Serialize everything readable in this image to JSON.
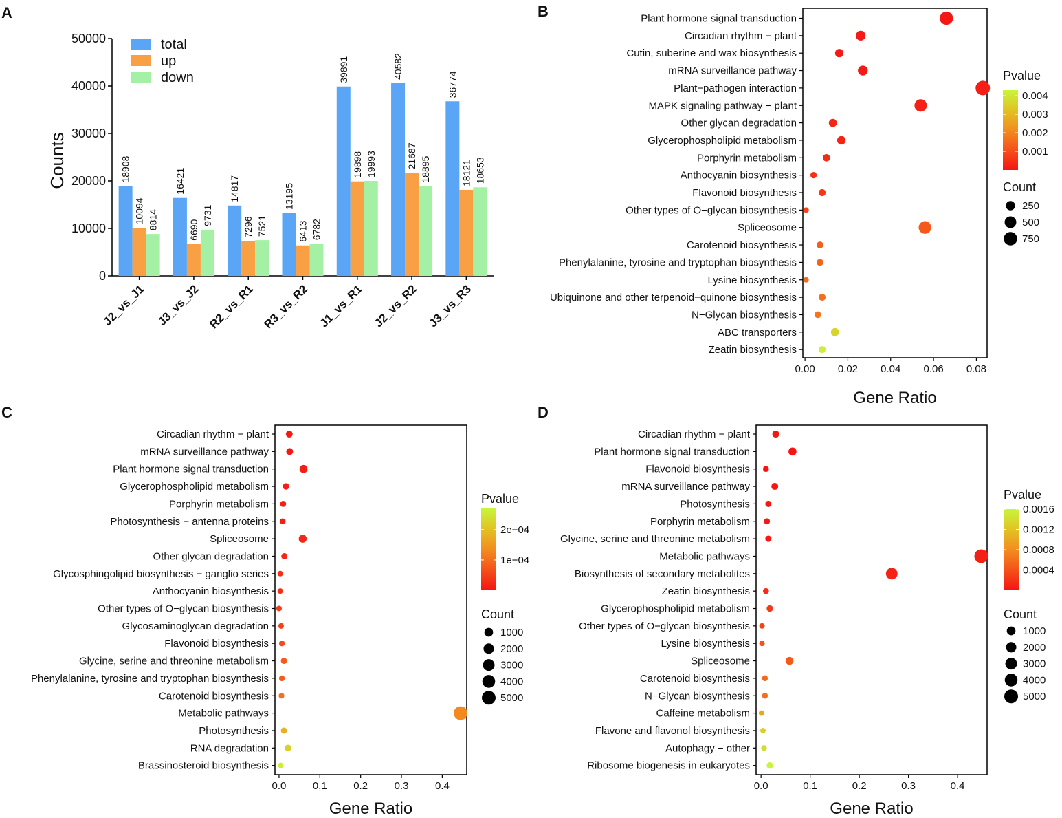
{
  "chart_data": [
    {
      "panel": "A",
      "type": "bar",
      "ylabel": "Counts",
      "xlabel": "",
      "ylim": [
        0,
        50000
      ],
      "yticks": [
        0,
        10000,
        20000,
        30000,
        40000,
        50000
      ],
      "categories": [
        "J2_vs_J1",
        "J3_vs_J2",
        "R2_vs_R1",
        "R3_vs_R2",
        "J1_vs_R1",
        "J2_vs_R2",
        "J3_vs_R3"
      ],
      "series": [
        {
          "name": "total",
          "color": "#5aa5f5",
          "values": [
            18908,
            16421,
            14817,
            13195,
            39891,
            40582,
            36774
          ]
        },
        {
          "name": "up",
          "color": "#f9a044",
          "values": [
            10094,
            6690,
            7296,
            6413,
            19898,
            21687,
            18121
          ]
        },
        {
          "name": "down",
          "color": "#a4f0a4",
          "values": [
            8814,
            9731,
            7521,
            6782,
            19993,
            18895,
            18653
          ]
        }
      ]
    },
    {
      "panel": "B",
      "type": "scatter",
      "xlabel": "Gene Ratio",
      "xlim": [
        -0.001,
        0.085
      ],
      "xticks": [
        0.0,
        0.02,
        0.04,
        0.06,
        0.08
      ],
      "xtick_labels": [
        "0.00",
        "0.02",
        "0.04",
        "0.06",
        "0.08"
      ],
      "color_title": "Pvalue",
      "color_range": [
        0.0,
        0.0043
      ],
      "color_ticks": [
        "0.001",
        "0.002",
        "0.003",
        "0.004"
      ],
      "color_tick_values": [
        0.001,
        0.002,
        0.003,
        0.004
      ],
      "size_title": "Count",
      "size_range": [
        30,
        900
      ],
      "size_legend": [
        "250",
        "500",
        "750"
      ],
      "size_legend_values": [
        250,
        500,
        750
      ],
      "terms": [
        {
          "label": "Plant hormone signal transduction",
          "x": 0.066,
          "count": 720,
          "p": 5e-05
        },
        {
          "label": "Circadian rhythm − plant",
          "x": 0.026,
          "count": 290,
          "p": 0.0001
        },
        {
          "label": "Cutin, suberine and wax biosynthesis",
          "x": 0.016,
          "count": 180,
          "p": 0.0001
        },
        {
          "label": "mRNA surveillance pathway",
          "x": 0.027,
          "count": 300,
          "p": 0.0001
        },
        {
          "label": "Plant−pathogen interaction",
          "x": 0.083,
          "count": 900,
          "p": 0.0002
        },
        {
          "label": "MAPK signaling pathway − plant",
          "x": 0.054,
          "count": 600,
          "p": 0.0002
        },
        {
          "label": "Other glycan degradation",
          "x": 0.013,
          "count": 150,
          "p": 0.0003
        },
        {
          "label": "Glycerophospholipid metabolism",
          "x": 0.017,
          "count": 190,
          "p": 0.0003
        },
        {
          "label": "Porphyrin metabolism",
          "x": 0.01,
          "count": 110,
          "p": 0.0004
        },
        {
          "label": "Anthocyanin biosynthesis",
          "x": 0.004,
          "count": 60,
          "p": 0.0005
        },
        {
          "label": "Flavonoid biosynthesis",
          "x": 0.008,
          "count": 95,
          "p": 0.0006
        },
        {
          "label": "Other types of O−glycan biosynthesis",
          "x": 0.0005,
          "count": 30,
          "p": 0.0008
        },
        {
          "label": "Spliceosome",
          "x": 0.056,
          "count": 620,
          "p": 0.0012
        },
        {
          "label": "Carotenoid biosynthesis",
          "x": 0.007,
          "count": 80,
          "p": 0.0013
        },
        {
          "label": "Phenylalanine, tyrosine and tryptophan biosynthesis",
          "x": 0.007,
          "count": 80,
          "p": 0.0014
        },
        {
          "label": "Lysine biosynthesis",
          "x": 0.0005,
          "count": 30,
          "p": 0.0015
        },
        {
          "label": "Ubiquinone and other terpenoid−quinone biosynthesis",
          "x": 0.008,
          "count": 90,
          "p": 0.0016
        },
        {
          "label": "N−Glycan biosynthesis",
          "x": 0.006,
          "count": 75,
          "p": 0.0017
        },
        {
          "label": "ABC transporters",
          "x": 0.014,
          "count": 160,
          "p": 0.0036
        },
        {
          "label": "Zeatin biosynthesis",
          "x": 0.008,
          "count": 90,
          "p": 0.0042
        }
      ]
    },
    {
      "panel": "C",
      "type": "scatter",
      "xlabel": "Gene Ratio",
      "xlim": [
        -0.01,
        0.46
      ],
      "xticks": [
        0.0,
        0.1,
        0.2,
        0.3,
        0.4
      ],
      "xtick_labels": [
        "0.0",
        "0.1",
        "0.2",
        "0.3",
        "0.4"
      ],
      "color_title": "Pvalue",
      "color_range": [
        0.0,
        0.00027
      ],
      "color_ticks": [
        "1e−04",
        "2e−04"
      ],
      "color_tick_values": [
        0.0001,
        0.0002
      ],
      "size_title": "Count",
      "size_range": [
        50,
        5000
      ],
      "size_legend": [
        "1000",
        "2000",
        "3000",
        "4000",
        "5000"
      ],
      "size_legend_values": [
        1000,
        2000,
        3000,
        4000,
        5000
      ],
      "terms": [
        {
          "label": "Circadian rhythm − plant",
          "x": 0.025,
          "count": 300,
          "p": 5e-06
        },
        {
          "label": "mRNA surveillance pathway",
          "x": 0.026,
          "count": 300,
          "p": 5e-06
        },
        {
          "label": "Plant hormone signal transduction",
          "x": 0.06,
          "count": 700,
          "p": 1e-05
        },
        {
          "label": "Glycerophospholipid metabolism",
          "x": 0.017,
          "count": 200,
          "p": 1e-05
        },
        {
          "label": "Porphyrin metabolism",
          "x": 0.01,
          "count": 120,
          "p": 1e-05
        },
        {
          "label": "Photosynthesis − antenna proteins",
          "x": 0.009,
          "count": 100,
          "p": 1e-05
        },
        {
          "label": "Spliceosome",
          "x": 0.058,
          "count": 650,
          "p": 2e-05
        },
        {
          "label": "Other glycan degradation",
          "x": 0.013,
          "count": 150,
          "p": 2e-05
        },
        {
          "label": "Glycosphingolipid biosynthesis − ganglio series",
          "x": 0.003,
          "count": 50,
          "p": 3e-05
        },
        {
          "label": "Anthocyanin biosynthesis",
          "x": 0.003,
          "count": 50,
          "p": 3e-05
        },
        {
          "label": "Other types of O−glycan biosynthesis",
          "x": 0.0,
          "count": 30,
          "p": 4e-05
        },
        {
          "label": "Glycosaminoglycan degradation",
          "x": 0.005,
          "count": 60,
          "p": 5e-05
        },
        {
          "label": "Flavonoid biosynthesis",
          "x": 0.007,
          "count": 80,
          "p": 6e-05
        },
        {
          "label": "Glycine, serine and threonine metabolism",
          "x": 0.012,
          "count": 140,
          "p": 8e-05
        },
        {
          "label": "Phenylalanine, tyrosine and tryptophan biosynthesis",
          "x": 0.007,
          "count": 80,
          "p": 8e-05
        },
        {
          "label": "Carotenoid biosynthesis",
          "x": 0.006,
          "count": 70,
          "p": 0.0001
        },
        {
          "label": "Metabolic pathways",
          "x": 0.445,
          "count": 4950,
          "p": 0.00013
        },
        {
          "label": "Photosynthesis",
          "x": 0.012,
          "count": 140,
          "p": 0.00018
        },
        {
          "label": "RNA degradation",
          "x": 0.022,
          "count": 250,
          "p": 0.00022
        },
        {
          "label": "Brassinosteroid biosynthesis",
          "x": 0.004,
          "count": 50,
          "p": 0.00026
        }
      ]
    },
    {
      "panel": "D",
      "type": "scatter",
      "xlabel": "Gene Ratio",
      "xlim": [
        -0.01,
        0.46
      ],
      "xticks": [
        0.0,
        0.1,
        0.2,
        0.3,
        0.4
      ],
      "xtick_labels": [
        "0.0",
        "0.1",
        "0.2",
        "0.3",
        "0.4"
      ],
      "color_title": "Pvalue",
      "color_range": [
        0.0,
        0.0016
      ],
      "color_ticks": [
        "0.0004",
        "0.0008",
        "0.0012",
        "0.0016"
      ],
      "color_tick_values": [
        0.0004,
        0.0008,
        0.0012,
        0.0016
      ],
      "size_title": "Count",
      "size_range": [
        50,
        5000
      ],
      "size_legend": [
        "1000",
        "2000",
        "3000",
        "4000",
        "5000"
      ],
      "size_legend_values": [
        1000,
        2000,
        3000,
        4000,
        5000
      ],
      "terms": [
        {
          "label": "Circadian rhythm − plant",
          "x": 0.03,
          "count": 330,
          "p": 1e-05
        },
        {
          "label": "Plant hormone signal transduction",
          "x": 0.064,
          "count": 700,
          "p": 1e-05
        },
        {
          "label": "Flavonoid biosynthesis",
          "x": 0.01,
          "count": 110,
          "p": 1e-05
        },
        {
          "label": "mRNA surveillance pathway",
          "x": 0.028,
          "count": 310,
          "p": 1e-05
        },
        {
          "label": "Photosynthesis",
          "x": 0.015,
          "count": 170,
          "p": 2e-05
        },
        {
          "label": "Porphyrin metabolism",
          "x": 0.012,
          "count": 130,
          "p": 2e-05
        },
        {
          "label": "Glycine, serine and threonine metabolism",
          "x": 0.015,
          "count": 170,
          "p": 3e-05
        },
        {
          "label": "Metabolic pathways",
          "x": 0.448,
          "count": 4950,
          "p": 8e-05
        },
        {
          "label": "Biosynthesis of secondary metabolites",
          "x": 0.266,
          "count": 2950,
          "p": 0.0001
        },
        {
          "label": "Zeatin biosynthesis",
          "x": 0.01,
          "count": 110,
          "p": 0.00015
        },
        {
          "label": "Glycerophospholipid metabolism",
          "x": 0.018,
          "count": 200,
          "p": 0.00025
        },
        {
          "label": "Other types of O−glycan biosynthesis",
          "x": 0.002,
          "count": 40,
          "p": 0.0003
        },
        {
          "label": "Lysine biosynthesis",
          "x": 0.002,
          "count": 40,
          "p": 0.0004
        },
        {
          "label": "Spliceosome",
          "x": 0.058,
          "count": 640,
          "p": 0.00045
        },
        {
          "label": "Carotenoid biosynthesis",
          "x": 0.008,
          "count": 90,
          "p": 0.00055
        },
        {
          "label": "N−Glycan biosynthesis",
          "x": 0.008,
          "count": 90,
          "p": 0.0006
        },
        {
          "label": "Caffeine metabolism",
          "x": 0.001,
          "count": 30,
          "p": 0.001
        },
        {
          "label": "Flavone and flavonol biosynthesis",
          "x": 0.004,
          "count": 50,
          "p": 0.0013
        },
        {
          "label": "Autophagy − other",
          "x": 0.006,
          "count": 70,
          "p": 0.0014
        },
        {
          "label": "Ribosome biogenesis in eukaryotes",
          "x": 0.018,
          "count": 200,
          "p": 0.0016
        }
      ]
    }
  ]
}
